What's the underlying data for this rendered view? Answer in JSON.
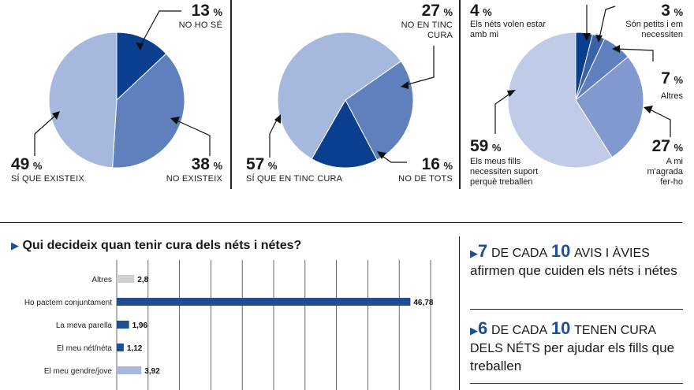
{
  "pie1": {
    "slices": [
      {
        "label": "NO HO SÉ",
        "value": 13,
        "pct_text": "13",
        "color": "#0a3f8f"
      },
      {
        "label": "NO EXISTEIX",
        "value": 38,
        "pct_text": "38",
        "color": "#5f7fbd"
      },
      {
        "label": "SÍ QUE EXISTEIX",
        "value": 49,
        "pct_text": "49",
        "color": "#a7b8df"
      }
    ]
  },
  "pie2": {
    "slices": [
      {
        "label": "NO EN TINC CURA",
        "value": 27,
        "pct_text": "27",
        "color": "#5f7fbd"
      },
      {
        "label": "NO DE TOTS",
        "value": 16,
        "pct_text": "16",
        "color": "#0a3f8f"
      },
      {
        "label": "SÍ QUE EN TINC CURA",
        "value": 57,
        "pct_text": "57",
        "color": "#a7b8df"
      }
    ]
  },
  "pie3": {
    "slices": [
      {
        "label": "Els néts volen estar amb mi",
        "value": 4,
        "pct_text": "4",
        "color": "#0a3f8f"
      },
      {
        "label": "Són petits i em necessiten",
        "value": 3,
        "pct_text": "3",
        "color": "#3a62a8"
      },
      {
        "label": "Altres",
        "value": 7,
        "pct_text": "7",
        "color": "#5f7fbd"
      },
      {
        "label": "A mi m'agrada fer-ho",
        "value": 27,
        "pct_text": "27",
        "color": "#8199cf"
      },
      {
        "label": "Els meus fills necessiten suport perquè treballen",
        "value": 59,
        "pct_text": "59",
        "color": "#bfcbe7"
      }
    ]
  },
  "percent_sign": "%",
  "bar_chart": {
    "title": "Qui decideix quan tenir cura dels néts i nétes?"
  },
  "chart_data": {
    "type": "bar",
    "title": "Qui decideix quan tenir cura dels néts i nétes?",
    "categories": [
      "Altres",
      "Ho pactem conjuntament",
      "La meva parella",
      "El meu nét/néta",
      "El meu gendre/jove"
    ],
    "values": [
      2.8,
      46.78,
      1.96,
      1.12,
      3.92
    ],
    "value_labels": [
      "2,8",
      "46,78",
      "1,96",
      "1,12",
      "3,92"
    ],
    "colors": [
      "#d0d0d0",
      "#1f4e93",
      "#1f4e93",
      "#1f4e93",
      "#a7b8df"
    ],
    "xlim": [
      0,
      50
    ],
    "grid": true
  },
  "facts": {
    "fact1": {
      "num": "7",
      "mid": "DE CADA",
      "num2": "10",
      "upper": "AVIS I ÀVIES",
      "rest": "afirmen que cuiden els néts i nétes"
    },
    "fact2": {
      "num": "6",
      "mid": "DE CADA",
      "num2": "10",
      "upper": "TENEN CURA DELS NÉTS",
      "rest": "per ajudar els fills que treballen"
    }
  }
}
